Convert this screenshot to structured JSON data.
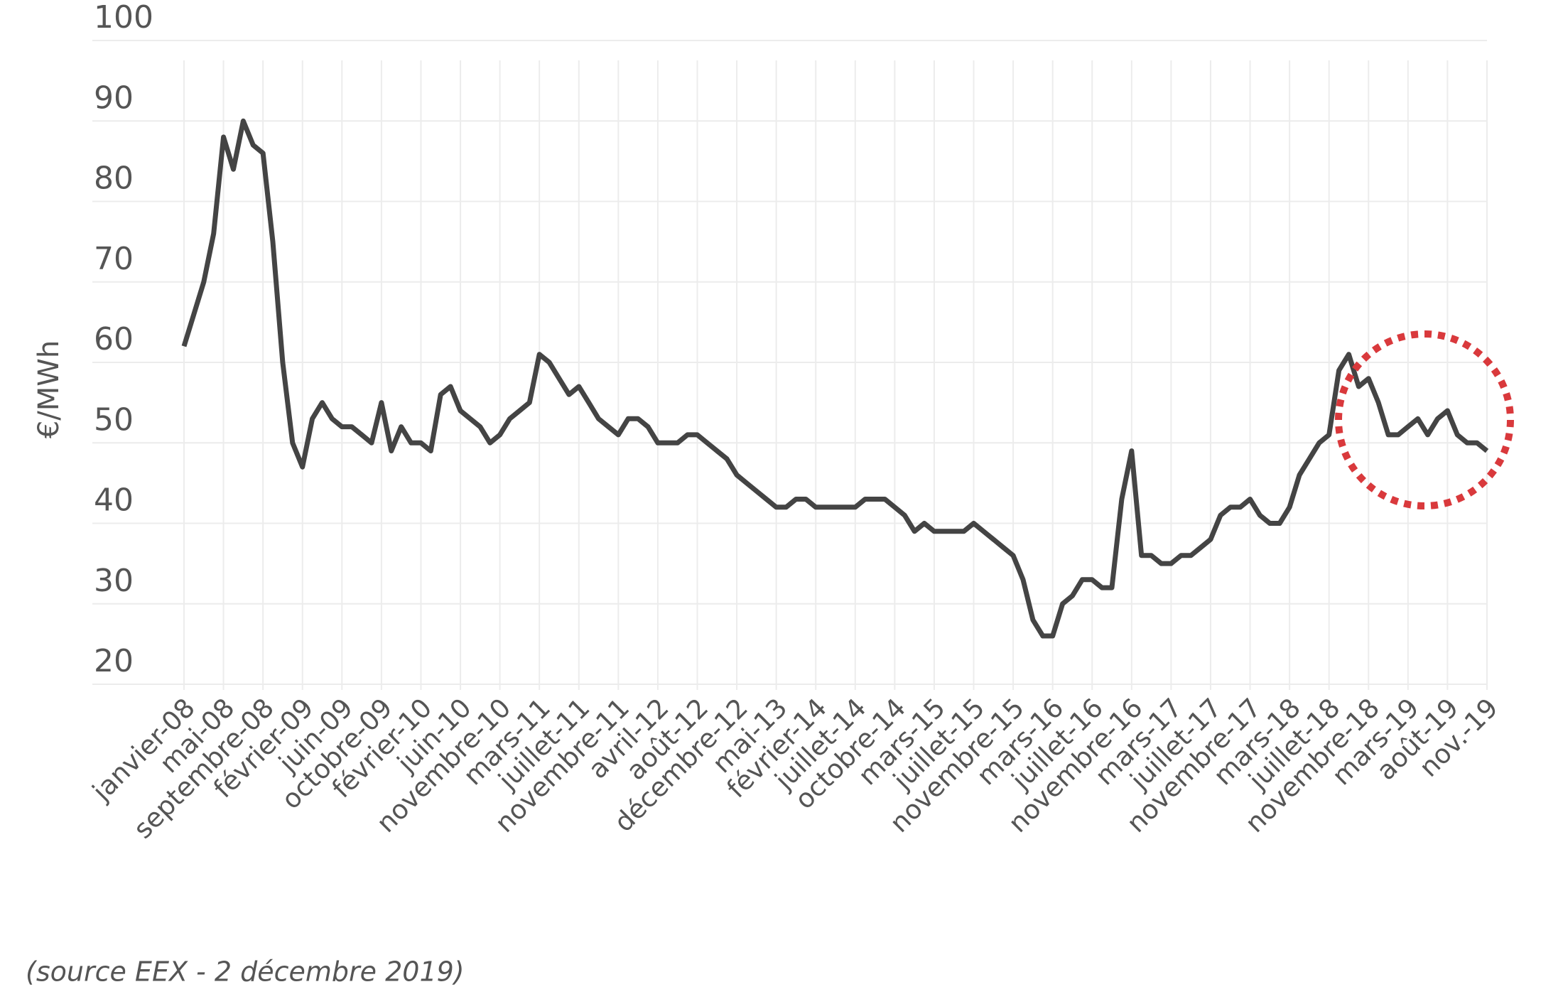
{
  "chart_data": {
    "type": "line",
    "y_label": "€/MWh",
    "source": "(source EEX - 2 décembre 2019)",
    "categories": [
      "janvier-08",
      null,
      null,
      null,
      "mai-08",
      null,
      null,
      null,
      "septembre-08",
      null,
      null,
      null,
      "février-09",
      null,
      null,
      null,
      "juin-09",
      null,
      null,
      null,
      "octobre-09",
      null,
      null,
      null,
      "février-10",
      null,
      null,
      null,
      "juin-10",
      null,
      null,
      null,
      "novembre-10",
      null,
      null,
      null,
      "mars-11",
      null,
      null,
      null,
      "juillet-11",
      null,
      null,
      null,
      "novembre-11",
      null,
      null,
      null,
      "avril-12",
      null,
      null,
      null,
      "août-12",
      null,
      null,
      null,
      "décembre-12",
      null,
      null,
      null,
      "mai-13",
      null,
      null,
      null,
      "février-14",
      null,
      null,
      null,
      "juillet-14",
      null,
      null,
      null,
      "octobre-14",
      null,
      null,
      null,
      "mars-15",
      null,
      null,
      null,
      "juillet-15",
      null,
      null,
      null,
      "novembre-15",
      null,
      null,
      null,
      "mars-16",
      null,
      null,
      null,
      "juillet-16",
      null,
      null,
      null,
      "novembre-16",
      null,
      null,
      null,
      "mars-17",
      null,
      null,
      null,
      "juillet-17",
      null,
      null,
      null,
      "novembre-17",
      null,
      null,
      null,
      "mars-18",
      null,
      null,
      null,
      "juillet-18",
      null,
      null,
      null,
      "novembre-18",
      null,
      null,
      null,
      "mars-19",
      null,
      null,
      null,
      "août-19",
      null,
      null,
      null,
      "nov.-19"
    ],
    "values": [
      62,
      66,
      70,
      76,
      88,
      84,
      90,
      87,
      86,
      75,
      60,
      50,
      47,
      53,
      55,
      53,
      52,
      52,
      51,
      50,
      55,
      49,
      52,
      50,
      50,
      49,
      56,
      57,
      54,
      53,
      52,
      50,
      51,
      53,
      54,
      55,
      61,
      60,
      58,
      56,
      57,
      55,
      53,
      52,
      51,
      53,
      53,
      52,
      50,
      50,
      50,
      51,
      51,
      50,
      49,
      48,
      46,
      45,
      44,
      43,
      42,
      42,
      43,
      43,
      42,
      42,
      42,
      42,
      42,
      43,
      43,
      43,
      42,
      41,
      39,
      40,
      39,
      39,
      39,
      39,
      40,
      39,
      38,
      37,
      36,
      33,
      28,
      26,
      26,
      30,
      31,
      33,
      33,
      32,
      32,
      43,
      49,
      36,
      36,
      35,
      35,
      36,
      36,
      37,
      38,
      41,
      42,
      42,
      43,
      41,
      40,
      40,
      42,
      46,
      48,
      50,
      51,
      59,
      61,
      57,
      58,
      55,
      51,
      51,
      52,
      53,
      51,
      53,
      54,
      51,
      50,
      50,
      49
    ],
    "color": "#444444",
    "ylim": [
      20,
      100
    ],
    "yticks": [
      20,
      30,
      40,
      50,
      60,
      70,
      80,
      90,
      100
    ],
    "grid": true
  }
}
